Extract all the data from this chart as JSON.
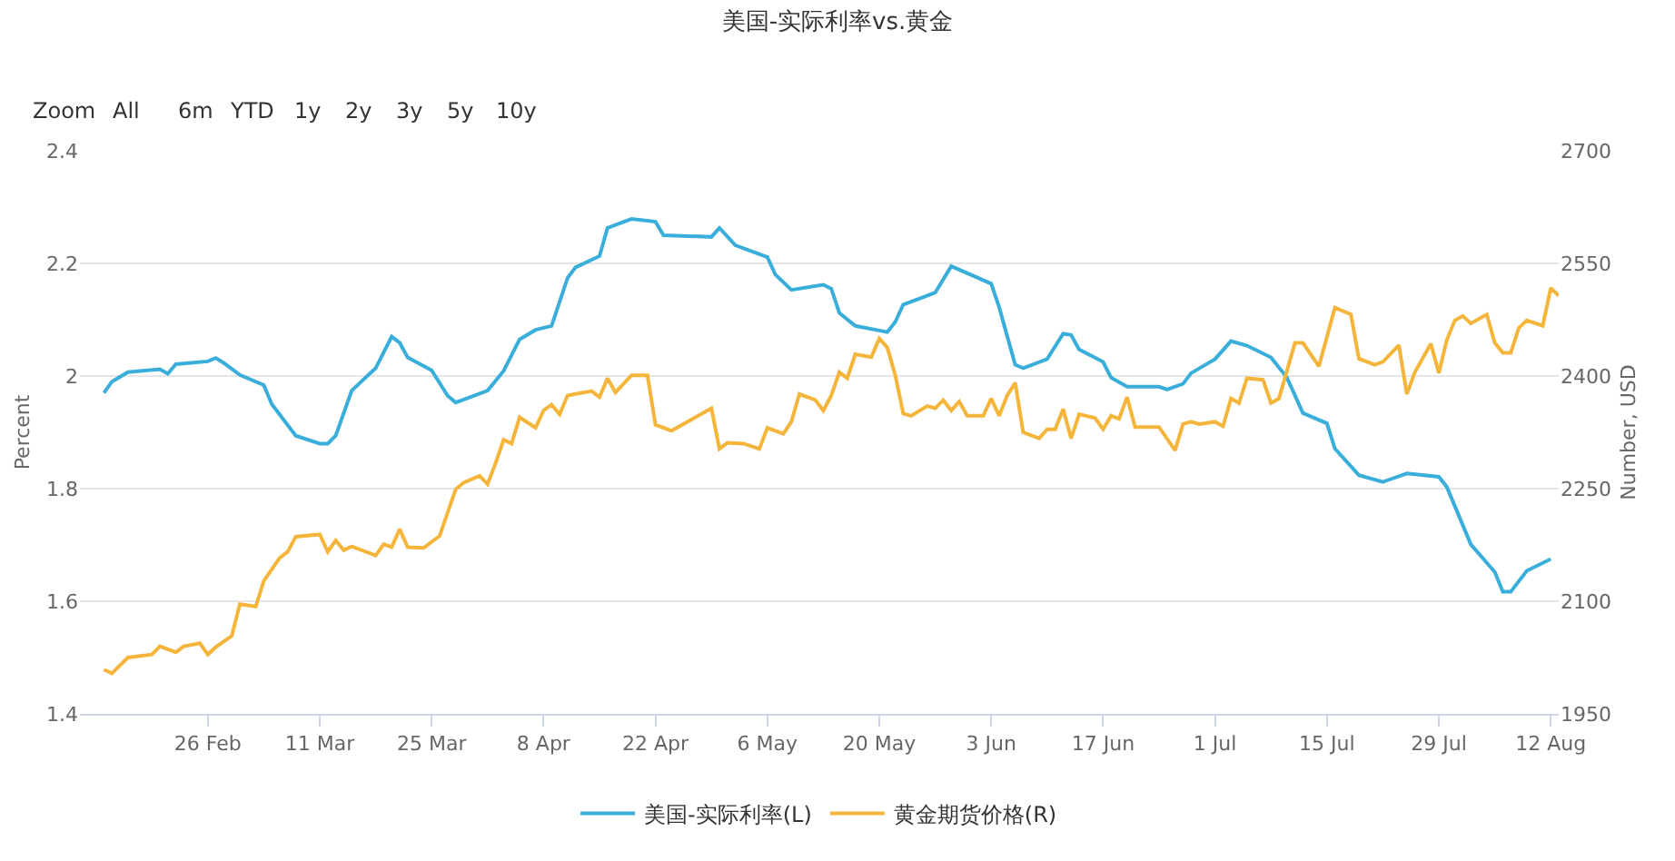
{
  "chart_data": {
    "type": "line",
    "title": "美国-实际利率vs.黄金",
    "annotations": [
      "Zoom",
      "All",
      "6m",
      "YTD",
      "1y",
      "2y",
      "3y",
      "5y",
      "10y"
    ],
    "ylabel": "Percent",
    "y2label": "Number, USD",
    "xlim": [
      "--02-10",
      "--08-13"
    ],
    "xticks": [
      {
        "value": "--02-26",
        "label": "26 Feb"
      },
      {
        "value": "--03-11",
        "label": "11 Mar"
      },
      {
        "value": "--03-25",
        "label": "25 Mar"
      },
      {
        "value": "--04-08",
        "label": "8 Apr"
      },
      {
        "value": "--04-22",
        "label": "22 Apr"
      },
      {
        "value": "--05-06",
        "label": "6 May"
      },
      {
        "value": "--05-20",
        "label": "20 May"
      },
      {
        "value": "--06-03",
        "label": "3 Jun"
      },
      {
        "value": "--06-17",
        "label": "17 Jun"
      },
      {
        "value": "--07-01",
        "label": "1 Jul"
      },
      {
        "value": "--07-15",
        "label": "15 Jul"
      },
      {
        "value": "--07-29",
        "label": "29 Jul"
      },
      {
        "value": "--08-12",
        "label": "12 Aug"
      }
    ],
    "ylim": [
      1.4,
      2.4
    ],
    "yticks": [
      1.4,
      1.6,
      1.8,
      2,
      2.2,
      2.4
    ],
    "y2lim": [
      1950,
      2700
    ],
    "y2ticks": [
      1950,
      2100,
      2250,
      2400,
      2550,
      2700
    ],
    "grid": "y",
    "legend": "bottom",
    "marker": "none",
    "line_style": "solid",
    "series": [
      {
        "name": "美国-实际利率(L)",
        "color": "#3aaedb",
        "x": [
          "--02-13",
          "--02-14",
          "--02-16",
          "--02-20",
          "--02-21",
          "--02-22",
          "--02-26",
          "--02-27",
          "--02-28",
          "--03-01",
          "--03-04",
          "--03-05",
          "--03-08",
          "--03-11",
          "--03-12",
          "--03-13",
          "--03-15",
          "--03-18",
          "--03-20",
          "--03-21",
          "--03-22",
          "--03-25",
          "--03-27",
          "--03-28",
          "--04-01",
          "--04-03",
          "--04-05",
          "--04-07",
          "--04-09",
          "--04-11",
          "--04-12",
          "--04-15",
          "--04-16",
          "--04-19",
          "--04-22",
          "--04-23",
          "--04-29",
          "--04-30",
          "--05-02",
          "--05-06",
          "--05-07",
          "--05-09",
          "--05-13",
          "--05-14",
          "--05-15",
          "--05-17",
          "--05-21",
          "--05-22",
          "--05-23",
          "--05-27",
          "--05-29",
          "--06-03",
          "--06-04",
          "--06-06",
          "--06-07",
          "--06-10",
          "--06-12",
          "--06-13",
          "--06-14",
          "--06-17",
          "--06-18",
          "--06-20",
          "--06-24",
          "--06-25",
          "--06-27",
          "--06-28",
          "--07-01",
          "--07-03",
          "--07-05",
          "--07-08",
          "--07-10",
          "--07-12",
          "--07-15",
          "--07-16",
          "--07-19",
          "--07-22",
          "--07-25",
          "--07-29",
          "--07-30",
          "--08-02",
          "--08-05",
          "--08-06",
          "--08-07",
          "--08-09",
          "--08-12"
        ],
        "values": [
          1.97,
          1.99,
          2.007,
          2.012,
          2.004,
          2.021,
          2.026,
          2.032,
          2.023,
          2.002,
          1.984,
          1.95,
          1.894,
          1.88,
          1.88,
          1.894,
          1.974,
          2.014,
          2.07,
          2.059,
          2.033,
          2.01,
          1.965,
          1.953,
          1.974,
          2.009,
          2.065,
          2.082,
          2.089,
          2.174,
          2.193,
          2.213,
          2.263,
          2.279,
          2.274,
          2.25,
          2.247,
          2.263,
          2.232,
          2.211,
          2.18,
          2.153,
          2.162,
          2.155,
          2.112,
          2.089,
          2.078,
          2.096,
          2.127,
          2.148,
          2.195,
          2.164,
          2.122,
          2.02,
          2.014,
          2.03,
          2.075,
          2.073,
          2.047,
          2.025,
          1.997,
          1.981,
          1.981,
          1.976,
          1.986,
          2.005,
          2.03,
          2.062,
          2.054,
          2.033,
          1.997,
          1.934,
          1.916,
          1.871,
          1.824,
          1.812,
          1.827,
          1.821,
          1.803,
          1.701,
          1.652,
          1.617,
          1.617,
          1.654,
          1.675
        ]
      },
      {
        "name": "黄金期货价格(R)",
        "color": "#f5b53a",
        "axis": "y2",
        "x": [
          "--02-13",
          "--02-14",
          "--02-16",
          "--02-19",
          "--02-20",
          "--02-22",
          "--02-23",
          "--02-25",
          "--02-26",
          "--02-27",
          "--02-29",
          "--03-01",
          "--03-03",
          "--03-04",
          "--03-06",
          "--03-07",
          "--03-08",
          "--03-11",
          "--03-12",
          "--03-13",
          "--03-14",
          "--03-15",
          "--03-18",
          "--03-19",
          "--03-20",
          "--03-21",
          "--03-22",
          "--03-24",
          "--03-26",
          "--03-28",
          "--03-29",
          "--03-31",
          "--04-01",
          "--04-02",
          "--04-03",
          "--04-04",
          "--04-05",
          "--04-07",
          "--04-08",
          "--04-09",
          "--04-10",
          "--04-11",
          "--04-12",
          "--04-14",
          "--04-15",
          "--04-16",
          "--04-17",
          "--04-19",
          "--04-21",
          "--04-22",
          "--04-24",
          "--04-29",
          "--04-30",
          "--05-01",
          "--05-03",
          "--05-05",
          "--05-06",
          "--05-08",
          "--05-09",
          "--05-10",
          "--05-12",
          "--05-13",
          "--05-14",
          "--05-15",
          "--05-16",
          "--05-17",
          "--05-19",
          "--05-20",
          "--05-21",
          "--05-22",
          "--05-23",
          "--05-24",
          "--05-26",
          "--05-27",
          "--05-28",
          "--05-29",
          "--05-30",
          "--05-31",
          "--06-02",
          "--06-03",
          "--06-04",
          "--06-05",
          "--06-06",
          "--06-07",
          "--06-09",
          "--06-10",
          "--06-11",
          "--06-12",
          "--06-13",
          "--06-14",
          "--06-16",
          "--06-17",
          "--06-18",
          "--06-19",
          "--06-20",
          "--06-21",
          "--06-24",
          "--06-26",
          "--06-27",
          "--06-28",
          "--06-29",
          "--07-01",
          "--07-02",
          "--07-03",
          "--07-04",
          "--07-05",
          "--07-07",
          "--07-08",
          "--07-09",
          "--07-11",
          "--07-12",
          "--07-14",
          "--07-16",
          "--07-18",
          "--07-19",
          "--07-21",
          "--07-22",
          "--07-24",
          "--07-25",
          "--07-26",
          "--07-28",
          "--07-29",
          "--07-30",
          "--07-31",
          "--08-01",
          "--08-02",
          "--08-04",
          "--08-05",
          "--08-06",
          "--08-07",
          "--08-08",
          "--08-09",
          "--08-11",
          "--08-12",
          "--08-13"
        ],
        "values": [
          2009,
          2004,
          2025,
          2029,
          2040,
          2032,
          2040,
          2044,
          2029,
          2039,
          2054,
          2096,
          2093,
          2127,
          2158,
          2166,
          2186,
          2189,
          2166,
          2181,
          2168,
          2173,
          2161,
          2176,
          2172,
          2196,
          2172,
          2171,
          2187,
          2249,
          2258,
          2267,
          2256,
          2284,
          2315,
          2310,
          2345,
          2331,
          2354,
          2362,
          2349,
          2374,
          2376,
          2380,
          2372,
          2397,
          2378,
          2401,
          2401,
          2335,
          2327,
          2357,
          2303,
          2311,
          2310,
          2303,
          2331,
          2323,
          2339,
          2376,
          2368,
          2354,
          2374,
          2405,
          2397,
          2429,
          2425,
          2450,
          2438,
          2401,
          2350,
          2347,
          2360,
          2357,
          2368,
          2354,
          2366,
          2347,
          2347,
          2370,
          2347,
          2374,
          2391,
          2325,
          2317,
          2329,
          2329,
          2356,
          2317,
          2349,
          2344,
          2329,
          2347,
          2343,
          2372,
          2332,
          2332,
          2301,
          2336,
          2339,
          2336,
          2339,
          2333,
          2370,
          2364,
          2397,
          2395,
          2364,
          2370,
          2444,
          2444,
          2413,
          2491,
          2482,
          2423,
          2415,
          2419,
          2441,
          2376,
          2405,
          2443,
          2404,
          2448,
          2474,
          2480,
          2470,
          2482,
          2444,
          2431,
          2431,
          2464,
          2474,
          2467,
          2517,
          2507
        ]
      }
    ]
  }
}
